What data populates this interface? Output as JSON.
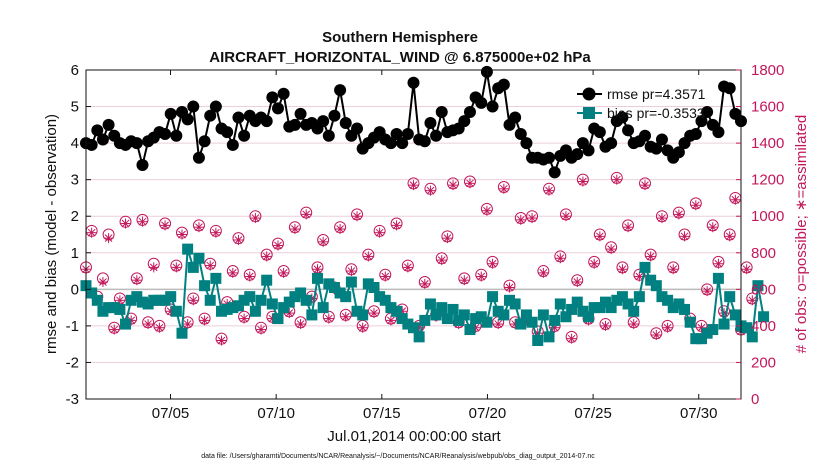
{
  "chart_data": {
    "type": "line",
    "title": "Southern Hemisphere",
    "subtitle": "AIRCRAFT_HORIZONTAL_WIND @ 6.875000e+02 hPa",
    "xlabel": "Jul.01,2014 00:00:00 start",
    "ylabel": "rmse and bias (model - observation)",
    "y2label": "# of obs: o=possible; ∗=assimilated",
    "footnote": "data file: /Users/gharamti/Documents/NCAR/Reanalysis/~/Documents/NCAR/Reanalysis/webpub/obs_diag_output_2014-07.nc",
    "xlim": [
      1,
      32
    ],
    "ylim": [
      -3,
      6
    ],
    "y2lim": [
      0,
      1800
    ],
    "xticks": [
      5,
      10,
      15,
      20,
      25,
      30
    ],
    "xtick_labels": [
      "07/05",
      "07/10",
      "07/15",
      "07/20",
      "07/25",
      "07/30"
    ],
    "yticks": [
      -3,
      -2,
      -1,
      0,
      1,
      2,
      3,
      4,
      5,
      6
    ],
    "ytick_labels": [
      "-3",
      "-2",
      "-1",
      "0",
      "1",
      "2",
      "3",
      "4",
      "5",
      "6"
    ],
    "y2ticks": [
      0,
      200,
      400,
      600,
      800,
      1000,
      1200,
      1400,
      1600,
      1800
    ],
    "y2tick_labels": [
      "0",
      "200",
      "400",
      "600",
      "800",
      "1000",
      "1200",
      "1400",
      "1600",
      "1800"
    ],
    "zero_line": 0,
    "colors": {
      "rmse": "#000000",
      "bias": "#008080",
      "obs": "#c2185b",
      "zero": "#bbbbbb",
      "grid": "#ebcfdc"
    },
    "legend": {
      "placement": "top-right",
      "entries": [
        "rmse pr=4.3571",
        "bias pr=-0.3533"
      ]
    },
    "series": [
      {
        "name": "rmse pr=4.3571",
        "color": "#000000",
        "values": [
          4.0,
          3.95,
          4.35,
          4.1,
          4.5,
          4.2,
          4.0,
          3.95,
          4.05,
          4.0,
          3.4,
          4.05,
          4.15,
          4.3,
          4.25,
          4.8,
          4.2,
          4.85,
          4.65,
          5.0,
          3.6,
          4.05,
          4.75,
          5.0,
          4.4,
          4.3,
          3.95,
          4.7,
          4.2,
          4.75,
          4.6,
          4.7,
          4.6,
          5.25,
          4.95,
          5.35,
          4.45,
          4.5,
          4.8,
          4.5,
          4.55,
          4.4,
          4.6,
          4.2,
          4.75,
          5.45,
          4.55,
          4.2,
          4.4,
          3.85,
          4.0,
          4.15,
          4.3,
          4.1,
          4.0,
          4.25,
          4.0,
          4.25,
          5.65,
          4.1,
          4.05,
          4.55,
          4.2,
          4.85,
          4.3,
          4.35,
          4.4,
          4.6,
          4.85,
          5.25,
          5.1,
          5.95,
          5.0,
          5.5,
          5.6,
          4.5,
          4.7,
          4.25,
          4.0,
          3.6,
          3.6,
          3.55,
          3.6,
          3.2,
          3.65,
          3.8,
          3.6,
          3.7,
          4.0,
          3.8,
          4.4,
          4.3,
          3.9,
          4.0,
          4.6,
          4.7,
          4.35,
          4.0,
          4.05,
          4.2,
          3.9,
          3.85,
          4.1,
          3.8,
          3.6,
          3.75,
          4.0,
          4.2,
          4.25,
          4.6,
          4.85,
          4.5,
          4.3,
          5.55,
          5.5,
          4.8,
          4.6
        ]
      },
      {
        "name": "bias pr=-0.3533",
        "color": "#008080",
        "values": [
          0.1,
          -0.1,
          -0.3,
          -0.6,
          -0.5,
          -0.5,
          -0.55,
          -0.95,
          -0.3,
          -0.2,
          -0.35,
          -0.4,
          -0.3,
          -0.3,
          -0.3,
          -0.2,
          -0.6,
          -1.2,
          1.1,
          0.6,
          0.85,
          0.1,
          -0.3,
          0.3,
          -0.6,
          -0.55,
          -0.5,
          -0.45,
          -0.3,
          -0.2,
          -0.6,
          -0.3,
          0.25,
          -0.4,
          -0.8,
          -0.5,
          -0.35,
          -0.2,
          -0.1,
          -0.3,
          -0.7,
          0.3,
          -0.5,
          0.15,
          0.05,
          -0.1,
          -0.2,
          0.2,
          -0.6,
          -0.7,
          0.15,
          0.05,
          -0.2,
          -0.3,
          -0.5,
          -0.6,
          -0.8,
          -0.95,
          -1.05,
          -1.3,
          -0.85,
          -0.4,
          -0.7,
          -0.5,
          -0.8,
          -0.55,
          -0.85,
          -0.7,
          -1.1,
          -0.8,
          -0.75,
          -0.9,
          -0.2,
          -0.6,
          -0.7,
          -0.3,
          -0.4,
          -0.95,
          -0.7,
          -0.9,
          -1.4,
          -0.7,
          -1.3,
          -0.85,
          -0.4,
          -0.75,
          -0.55,
          -0.35,
          -0.6,
          -0.75,
          -0.5,
          -0.5,
          -0.35,
          -0.5,
          -0.3,
          -0.2,
          -0.4,
          -0.6,
          -0.2,
          0.6,
          0.25,
          0.1,
          -0.2,
          -0.3,
          -0.5,
          -0.4,
          -0.55,
          -0.9,
          -1.35,
          -1.35,
          -1.2,
          -1.1,
          0.3,
          -0.95,
          -0.2,
          -0.7,
          -1.0,
          -1.05,
          -1.3,
          0.1,
          -0.75
        ]
      },
      {
        "name": "# of obs possible",
        "color": "#c2185b",
        "axis": "right",
        "values": [
          720,
          920,
          560,
          660,
          900,
          390,
          550,
          970,
          440,
          660,
          980,
          420,
          740,
          400,
          960,
          490,
          730,
          910,
          420,
          550,
          950,
          440,
          740,
          920,
          330,
          530,
          700,
          880,
          450,
          680,
          1000,
          390,
          790,
          450,
          850,
          700,
          480,
          940,
          420,
          1020,
          560,
          720,
          870,
          450,
          610,
          940,
          460,
          710,
          1010,
          400,
          790,
          480,
          920,
          680,
          440,
          960,
          490,
          730,
          1180,
          400,
          640,
          1150,
          460,
          770,
          890,
          1180,
          420,
          660,
          1190,
          400,
          680,
          1040,
          750,
          420,
          1160,
          620,
          420,
          990,
          440,
          1000,
          370,
          700,
          1150,
          400,
          780,
          1010,
          340,
          650,
          1200,
          440,
          750,
          900,
          410,
          830,
          1210,
          720,
          950,
          420,
          680,
          1180,
          790,
          360,
          1000,
          400,
          720,
          1020,
          900,
          440,
          1070,
          400,
          600,
          950,
          750,
          480,
          900,
          1100,
          380,
          720,
          550
        ]
      },
      {
        "name": "# of obs assimilated",
        "color": "#c2185b",
        "axis": "right",
        "values": [
          710,
          910,
          540,
          640,
          880,
          380,
          540,
          960,
          430,
          650,
          970,
          410,
          720,
          390,
          950,
          480,
          720,
          900,
          410,
          540,
          940,
          430,
          730,
          910,
          320,
          520,
          690,
          870,
          440,
          670,
          990,
          380,
          780,
          440,
          840,
          690,
          470,
          930,
          410,
          1010,
          550,
          710,
          860,
          440,
          600,
          930,
          450,
          700,
          1000,
          390,
          780,
          470,
          910,
          670,
          430,
          950,
          480,
          720,
          1170,
          390,
          630,
          1140,
          450,
          760,
          880,
          1170,
          410,
          650,
          1180,
          390,
          670,
          1030,
          740,
          410,
          1150,
          610,
          410,
          980,
          430,
          990,
          360,
          690,
          1140,
          390,
          770,
          1000,
          330,
          640,
          1190,
          430,
          740,
          890,
          400,
          820,
          1200,
          710,
          940,
          410,
          670,
          1170,
          780,
          350,
          990,
          390,
          710,
          1010,
          890,
          430,
          1060,
          390,
          590,
          940,
          740,
          470,
          890,
          1090,
          370,
          710,
          540
        ]
      }
    ]
  }
}
